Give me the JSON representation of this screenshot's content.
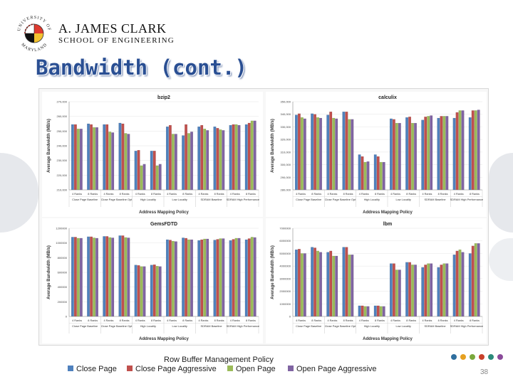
{
  "header": {
    "institution_line1": "A. JAMES CLARK",
    "institution_line2": "SCHOOL OF ENGINEERING",
    "logo_text_top": "UNIVERSITY OF",
    "logo_text_bottom": "MARYLAND"
  },
  "slide_title": "Bandwidth (cont.)",
  "legend": {
    "title": "Row Buffer Management Policy",
    "items": [
      {
        "label": "Close Page",
        "color": "#4f81bd"
      },
      {
        "label": "Close Page Aggressive",
        "color": "#c0504d"
      },
      {
        "label": "Open Page",
        "color": "#9bbb59"
      },
      {
        "label": "Open Page Aggressive",
        "color": "#8064a2"
      }
    ]
  },
  "footer": {
    "page_number": "38",
    "dot_colors": [
      "#2f6f9f",
      "#e6a020",
      "#7aa83c",
      "#c8402a",
      "#2b8a7a",
      "#8a4a9a"
    ]
  },
  "chart_data": [
    {
      "type": "bar",
      "title": "bzip2",
      "ylabel": "Average Bandwidth (MB/s)",
      "xlabel": "Address Mapping Policy",
      "ylim": [
        210000,
        270000
      ],
      "yticks": [
        "210,000",
        "220,000",
        "230,000",
        "240,000",
        "250,000",
        "260,000",
        "270,000"
      ],
      "categories": [
        "4 Ranks",
        "8 Ranks",
        "4 Ranks",
        "8 Ranks",
        "4 Ranks",
        "8 Ranks",
        "4 Ranks",
        "8 Ranks",
        "4 Ranks",
        "8 Ranks",
        "4 Ranks",
        "8 Ranks"
      ],
      "groups": [
        "Close Page Baseline",
        "Close Page Baseline Opt",
        "High Locality",
        "Low Locality",
        "SDRAM Baseline",
        "SDRAM High Performance"
      ],
      "series": [
        {
          "values": [
            254500,
            255000,
            254500,
            255500,
            236500,
            236500,
            253000,
            247000,
            253000,
            253000,
            254000,
            254500
          ]
        },
        {
          "values": [
            254500,
            254500,
            254500,
            255000,
            237000,
            236500,
            254000,
            254500,
            254000,
            252000,
            254500,
            255500
          ]
        },
        {
          "values": [
            251500,
            252500,
            249500,
            248500,
            226500,
            226500,
            248000,
            248500,
            251500,
            251000,
            254500,
            257000
          ]
        },
        {
          "values": [
            251500,
            252500,
            249000,
            248000,
            227500,
            227500,
            248000,
            249500,
            250500,
            250500,
            254000,
            257000
          ]
        }
      ]
    },
    {
      "type": "bar",
      "title": "calculix",
      "ylabel": "Average Bandwidth (MB/s)",
      "xlabel": "Address Mapping Policy",
      "ylim": [
        280000,
        350000
      ],
      "yticks": [
        "280,000",
        "290,000",
        "300,000",
        "310,000",
        "320,000",
        "330,000",
        "340,000",
        "350,000"
      ],
      "categories": [
        "4 Ranks",
        "8 Ranks",
        "4 Ranks",
        "8 Ranks",
        "4 Ranks",
        "8 Ranks",
        "4 Ranks",
        "8 Ranks",
        "4 Ranks",
        "8 Ranks",
        "4 Ranks",
        "8 Ranks"
      ],
      "groups": [
        "Close Page Baseline",
        "Close Page Baseline Opt",
        "High Locality",
        "Low Locality",
        "SDRAM Baseline",
        "SDRAM High Performance"
      ],
      "series": [
        {
          "values": [
            339500,
            340500,
            339500,
            342000,
            308000,
            308000,
            336500,
            337500,
            335500,
            337000,
            337000,
            337500
          ]
        },
        {
          "values": [
            340500,
            340000,
            342000,
            342000,
            306500,
            306500,
            336000,
            338000,
            338000,
            338500,
            341500,
            343000
          ]
        },
        {
          "values": [
            337500,
            337500,
            337000,
            336000,
            302000,
            302000,
            333000,
            333000,
            338500,
            338500,
            343000,
            343000
          ]
        },
        {
          "values": [
            336500,
            337000,
            336500,
            336000,
            302500,
            302000,
            333000,
            333000,
            339000,
            338500,
            343000,
            343500
          ]
        }
      ]
    },
    {
      "type": "bar",
      "title": "GemsFDTD",
      "ylabel": "Average Bandwidth (MB/s)",
      "xlabel": "Address Mapping Policy",
      "ylim": [
        0,
        1200000
      ],
      "yticks": [
        "0",
        "200000",
        "400000",
        "600000",
        "800000",
        "1000000",
        "1200000"
      ],
      "categories": [
        "4 Ranks",
        "8 Ranks",
        "4 Ranks",
        "8 Ranks",
        "4 Ranks",
        "8 Ranks",
        "4 Ranks",
        "8 Ranks",
        "4 Ranks",
        "8 Ranks",
        "4 Ranks",
        "8 Ranks"
      ],
      "groups": [
        "Close Page Baseline",
        "Close Page Baseline Opt",
        "High Locality",
        "Low Locality",
        "SDRAM Baseline",
        "SDRAM High Performance"
      ],
      "series": [
        {
          "values": [
            1080000,
            1085000,
            1090000,
            1100000,
            700000,
            700000,
            1045000,
            1070000,
            1035000,
            1040000,
            1035000,
            1045000
          ]
        },
        {
          "values": [
            1080000,
            1085000,
            1090000,
            1100000,
            695000,
            705000,
            1040000,
            1065000,
            1045000,
            1050000,
            1050000,
            1060000
          ]
        },
        {
          "values": [
            1065000,
            1070000,
            1075000,
            1075000,
            680000,
            685000,
            1025000,
            1045000,
            1055000,
            1060000,
            1065000,
            1080000
          ]
        },
        {
          "values": [
            1065000,
            1065000,
            1070000,
            1070000,
            680000,
            680000,
            1020000,
            1045000,
            1055000,
            1060000,
            1065000,
            1075000
          ]
        }
      ]
    },
    {
      "type": "bar",
      "title": "lbm",
      "ylabel": "Average Bandwidth (MB/s)",
      "xlabel": "Address Mapping Policy",
      "ylim": [
        0,
        7000000
      ],
      "yticks": [
        "0",
        "1000000",
        "2000000",
        "3000000",
        "4000000",
        "5000000",
        "6000000",
        "7000000"
      ],
      "categories": [
        "4 Ranks",
        "8 Ranks",
        "4 Ranks",
        "8 Ranks",
        "4 Ranks",
        "8 Ranks",
        "4 Ranks",
        "8 Ranks",
        "4 Ranks",
        "8 Ranks",
        "4 Ranks",
        "8 Ranks"
      ],
      "groups": [
        "Close Page Baseline",
        "Close Page Baseline Opt",
        "High Locality",
        "Low Locality",
        "SDRAM Baseline",
        "SDRAM High Performance"
      ],
      "series": [
        {
          "values": [
            5300000,
            5500000,
            5100000,
            5500000,
            850000,
            850000,
            4200000,
            4300000,
            3900000,
            3900000,
            4900000,
            5000000
          ]
        },
        {
          "values": [
            5350000,
            5450000,
            5200000,
            5500000,
            850000,
            850000,
            4200000,
            4300000,
            4100000,
            4100000,
            5200000,
            5600000
          ]
        },
        {
          "values": [
            5000000,
            5200000,
            4800000,
            4900000,
            800000,
            800000,
            3700000,
            4100000,
            4200000,
            4200000,
            5300000,
            5800000
          ]
        },
        {
          "values": [
            5000000,
            5100000,
            4800000,
            4900000,
            800000,
            800000,
            3700000,
            4100000,
            4200000,
            4200000,
            5100000,
            5800000
          ]
        }
      ]
    }
  ]
}
